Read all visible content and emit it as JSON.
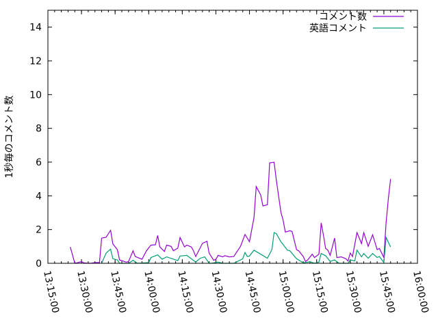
{
  "chart_data": {
    "type": "line",
    "title": "",
    "xlabel": "",
    "ylabel": "1秒毎のコメント数",
    "xlim": [
      "13:15:00",
      "16:00:00"
    ],
    "ylim": [
      0,
      15
    ],
    "x_ticks": [
      "13:15:00",
      "13:30:00",
      "13:45:00",
      "14:00:00",
      "14:15:00",
      "14:30:00",
      "14:45:00",
      "15:00:00",
      "15:15:00",
      "15:30:00",
      "15:45:00",
      "16:00:00"
    ],
    "y_ticks": [
      "0",
      "2",
      "4",
      "6",
      "8",
      "10",
      "12",
      "14"
    ],
    "grid": false,
    "legend_position": "top-right",
    "series": [
      {
        "name": "コメント数",
        "color": "#9400d3",
        "points": [
          [
            "13:25",
            0.97
          ],
          [
            "13:27",
            0
          ],
          [
            "13:28",
            0.03
          ],
          [
            "13:30",
            0.1
          ],
          [
            "13:31",
            0.03
          ],
          [
            "13:33",
            0
          ],
          [
            "13:34",
            0
          ],
          [
            "13:36",
            0.04
          ],
          [
            "13:38",
            0.04
          ],
          [
            "13:39",
            1.49
          ],
          [
            "13:41",
            1.55
          ],
          [
            "13:43",
            1.96
          ],
          [
            "13:44",
            1.15
          ],
          [
            "13:46",
            0.81
          ],
          [
            "13:47",
            0.2
          ],
          [
            "13:50",
            0.07
          ],
          [
            "13:51",
            0.1
          ],
          [
            "13:53",
            0.74
          ],
          [
            "13:54",
            0.4
          ],
          [
            "13:57",
            0.24
          ],
          [
            "13:59",
            0.74
          ],
          [
            "14:01",
            1.08
          ],
          [
            "14:03",
            1.1
          ],
          [
            "14:04",
            1.65
          ],
          [
            "14:05",
            0.97
          ],
          [
            "14:07",
            0.7
          ],
          [
            "14:08",
            1.08
          ],
          [
            "14:10",
            1.0
          ],
          [
            "14:11",
            0.74
          ],
          [
            "14:13",
            0.9
          ],
          [
            "14:14",
            1.53
          ],
          [
            "14:16",
            0.97
          ],
          [
            "14:17",
            1.08
          ],
          [
            "14:19",
            0.97
          ],
          [
            "14:20",
            0.74
          ],
          [
            "14:21",
            0.4
          ],
          [
            "14:24",
            1.18
          ],
          [
            "14:26",
            1.31
          ],
          [
            "14:27",
            0.6
          ],
          [
            "14:29",
            0.18
          ],
          [
            "14:30",
            0.24
          ],
          [
            "14:31",
            0.47
          ],
          [
            "14:33",
            0.38
          ],
          [
            "14:34",
            0.45
          ],
          [
            "14:36",
            0.38
          ],
          [
            "14:38",
            0.4
          ],
          [
            "14:41",
            1.01
          ],
          [
            "14:43",
            1.71
          ],
          [
            "14:45",
            1.28
          ],
          [
            "14:47",
            2.7
          ],
          [
            "14:48",
            4.55
          ],
          [
            "14:50",
            4.05
          ],
          [
            "14:51",
            3.4
          ],
          [
            "14:53",
            3.47
          ],
          [
            "14:54",
            5.95
          ],
          [
            "14:56",
            5.99
          ],
          [
            "14:57",
            4.93
          ],
          [
            "14:59",
            3.04
          ],
          [
            "15:00",
            2.57
          ],
          [
            "15:01",
            1.85
          ],
          [
            "15:03",
            1.93
          ],
          [
            "15:04",
            1.89
          ],
          [
            "15:06",
            0.81
          ],
          [
            "15:07",
            0.74
          ],
          [
            "15:09",
            0.4
          ],
          [
            "15:10",
            0.11
          ],
          [
            "15:11",
            0.2
          ],
          [
            "15:13",
            0.54
          ],
          [
            "15:14",
            0.34
          ],
          [
            "15:16",
            0.54
          ],
          [
            "15:17",
            2.4
          ],
          [
            "15:18",
            1.69
          ],
          [
            "15:19",
            0.88
          ],
          [
            "15:20",
            0.78
          ],
          [
            "15:21",
            0.47
          ],
          [
            "15:23",
            1.49
          ],
          [
            "15:24",
            0.34
          ],
          [
            "15:26",
            0.38
          ],
          [
            "15:28",
            0.27
          ],
          [
            "15:29",
            0.14
          ],
          [
            "15:30",
            0.61
          ],
          [
            "15:31",
            0.4
          ],
          [
            "15:33",
            1.82
          ],
          [
            "15:35",
            1.17
          ],
          [
            "15:36",
            1.82
          ],
          [
            "15:38",
            1.01
          ],
          [
            "15:40",
            1.69
          ],
          [
            "15:42",
            0.81
          ],
          [
            "15:43",
            0.88
          ],
          [
            "15:45",
            0.34
          ],
          [
            "15:46",
            2.43
          ],
          [
            "15:47",
            3.85
          ],
          [
            "15:48",
            5.0
          ]
        ]
      },
      {
        "name": "英語コメント",
        "color": "#009e73",
        "points": [
          [
            "13:39",
            0
          ],
          [
            "13:41",
            0.61
          ],
          [
            "13:43",
            0.84
          ],
          [
            "13:44",
            0.27
          ],
          [
            "13:46",
            0.2
          ],
          [
            "13:47",
            0
          ],
          [
            "13:51",
            0
          ],
          [
            "13:53",
            0.18
          ],
          [
            "13:55",
            0
          ],
          [
            "14:00",
            0.04
          ],
          [
            "14:01",
            0.34
          ],
          [
            "14:04",
            0.5
          ],
          [
            "14:06",
            0.24
          ],
          [
            "14:08",
            0.38
          ],
          [
            "14:13",
            0.16
          ],
          [
            "14:14",
            0.43
          ],
          [
            "14:17",
            0.47
          ],
          [
            "14:21",
            0.07
          ],
          [
            "14:23",
            0.3
          ],
          [
            "14:25",
            0.38
          ],
          [
            "14:27",
            0
          ],
          [
            "14:28",
            0
          ],
          [
            "14:31",
            0.07
          ],
          [
            "14:33",
            0
          ],
          [
            "14:38",
            0
          ],
          [
            "14:41",
            0.2
          ],
          [
            "14:42",
            0.27
          ],
          [
            "14:43",
            0.64
          ],
          [
            "14:44",
            0.4
          ],
          [
            "14:45",
            0.43
          ],
          [
            "14:47",
            0.78
          ],
          [
            "14:50",
            0.54
          ],
          [
            "14:53",
            0.3
          ],
          [
            "14:55",
            0.81
          ],
          [
            "14:56",
            1.82
          ],
          [
            "14:57",
            1.76
          ],
          [
            "14:59",
            1.28
          ],
          [
            "15:02",
            0.77
          ],
          [
            "15:03",
            0.74
          ],
          [
            "15:06",
            0.27
          ],
          [
            "15:09",
            0.03
          ],
          [
            "15:12",
            0.09
          ],
          [
            "15:14",
            0
          ],
          [
            "15:16",
            0.07
          ],
          [
            "15:17",
            0.58
          ],
          [
            "15:19",
            0.45
          ],
          [
            "15:21",
            0.11
          ],
          [
            "15:23",
            0.2
          ],
          [
            "15:25",
            0
          ],
          [
            "15:29",
            0
          ],
          [
            "15:30",
            0.2
          ],
          [
            "15:32",
            0.14
          ],
          [
            "15:33",
            0.78
          ],
          [
            "15:35",
            0.38
          ],
          [
            "15:36",
            0.58
          ],
          [
            "15:38",
            0.3
          ],
          [
            "15:40",
            0.58
          ],
          [
            "15:42",
            0.34
          ],
          [
            "15:43",
            0.4
          ],
          [
            "15:45",
            0.04
          ],
          [
            "15:46",
            1.53
          ],
          [
            "15:48",
            0.97
          ]
        ]
      }
    ]
  }
}
